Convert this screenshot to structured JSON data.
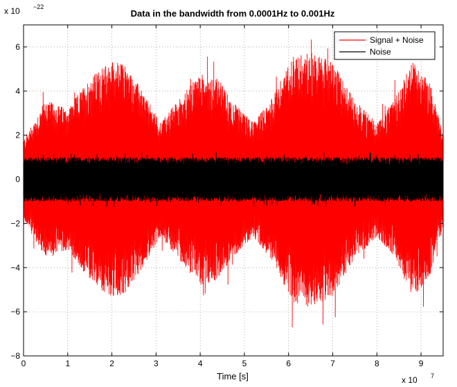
{
  "chart_data": {
    "type": "line",
    "title": "Data in the bandwidth from 0.0001Hz to 0.001Hz",
    "xlabel": "Time [s]",
    "ylabel": "",
    "x_multiplier_label": "x 10",
    "x_multiplier_exp": "7",
    "y_multiplier_label": "x 10",
    "y_multiplier_exp": "−22",
    "xlim": [
      0,
      9.5
    ],
    "ylim": [
      -8,
      7
    ],
    "x_ticks": [
      "0",
      "1",
      "2",
      "3",
      "4",
      "5",
      "6",
      "7",
      "8",
      "9"
    ],
    "y_ticks": [
      "−8",
      "−6",
      "−4",
      "−2",
      "0",
      "2",
      "4",
      "6"
    ],
    "grid": true,
    "legend_position": "top-right",
    "series": [
      {
        "name": "Signal + Noise",
        "color": "#ff0000",
        "envelope_x": [
          0,
          0.5,
          1,
          1.5,
          2,
          2.3,
          2.6,
          3.1,
          3.5,
          4,
          4.4,
          4.7,
          5.2,
          5.6,
          6.1,
          6.5,
          7,
          7.5,
          8,
          8.4,
          8.8,
          9.2,
          9.5
        ],
        "envelope_amplitude": [
          1.8,
          3.6,
          3.2,
          4.6,
          5.4,
          5.2,
          4.3,
          2.6,
          3.6,
          4.8,
          4.6,
          3.6,
          2.6,
          3.6,
          5.6,
          5.8,
          5.3,
          3.6,
          2.6,
          3.6,
          5.4,
          4.4,
          2.1
        ],
        "max": 6.8,
        "min": -7.9
      },
      {
        "name": "Noise",
        "color": "#000000",
        "amplitude": 1.0,
        "max": 1.3,
        "min": -1.3
      }
    ]
  }
}
